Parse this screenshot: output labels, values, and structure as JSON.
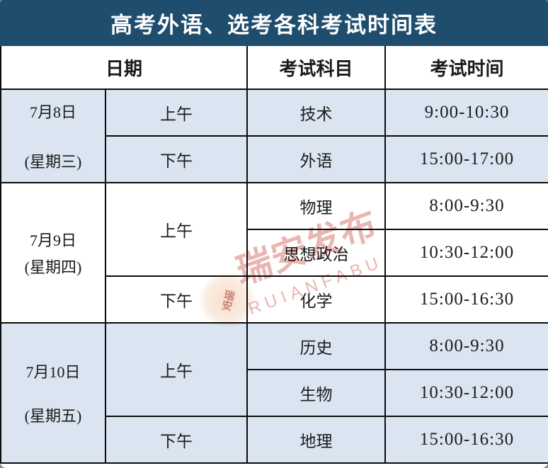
{
  "title": "高考外语、选考各科考试时间表",
  "header": {
    "date": "日期",
    "subject": "考试科目",
    "time": "考试时间"
  },
  "sections": [
    {
      "date_line1": "7月8日",
      "date_line2": "(星期三)",
      "rows": [
        {
          "period": "上午",
          "subject": "技术",
          "time": "9:00-10:30"
        },
        {
          "period": "下午",
          "subject": "外语",
          "time": "15:00-17:00"
        }
      ]
    },
    {
      "date_line1": "7月9日",
      "date_line2": "(星期四)",
      "rows": [
        {
          "period": "上午",
          "subject": "物理",
          "time": "8:00-9:30"
        },
        {
          "subject": "思想政治",
          "time": "10:30-12:00"
        },
        {
          "period": "下午",
          "subject": "化学",
          "time": "15:00-16:30"
        }
      ]
    },
    {
      "date_line1": "7月10日",
      "date_line2": "(星期五)",
      "rows": [
        {
          "period": "上午",
          "subject": "历史",
          "time": "8:00-9:30"
        },
        {
          "subject": "生物",
          "time": "10:30-12:00"
        },
        {
          "period": "下午",
          "subject": "地理",
          "time": "15:00-16:30"
        }
      ]
    }
  ],
  "watermark": {
    "brand_text": "瑞安发布",
    "brand_latin": "RUIANFABU",
    "seal_text": "瑞安"
  },
  "colors": {
    "title_bar_bg": "#1f4d6d",
    "title_text": "#ffffff",
    "row_highlight_bg": "#dbe5f1",
    "row_plain_bg": "#ffffff",
    "border": "#0b0b0b",
    "cell_text": "#1b1b1b",
    "watermark_red": "#c7493f",
    "seal_orange": "#e8a878"
  }
}
